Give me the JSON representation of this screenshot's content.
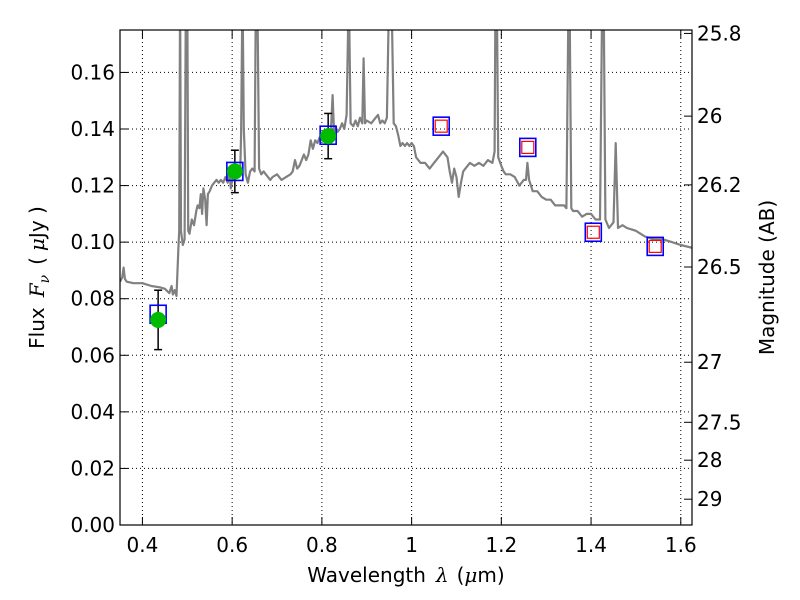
{
  "chart_data": {
    "type": "scatter",
    "xlabel": "Wavelength",
    "xlabel_symbol": "λ",
    "xlabel_unit_open": "(",
    "xlabel_unit_mu": "μ",
    "xlabel_unit_close": "m)",
    "ylabel": "Flux",
    "ylabel_symbol": "F",
    "ylabel_subscript": "ν",
    "ylabel_unit_open": "(",
    "ylabel_unit_mu": "μ",
    "ylabel_unit_close": "Jy )",
    "y2label": "Magnitude (AB)",
    "xlim": [
      0.35,
      1.625
    ],
    "ylim": [
      0.0,
      0.175
    ],
    "grid": true,
    "x_ticks": [
      {
        "value": 0.4,
        "label": "0.4"
      },
      {
        "value": 0.6,
        "label": "0.6"
      },
      {
        "value": 0.8,
        "label": "0.8"
      },
      {
        "value": 1.0,
        "label": "1"
      },
      {
        "value": 1.2,
        "label": "1.2"
      },
      {
        "value": 1.4,
        "label": "1.4"
      },
      {
        "value": 1.6,
        "label": "1.6"
      }
    ],
    "y_ticks": [
      {
        "value": 0.0,
        "label": "0.00"
      },
      {
        "value": 0.02,
        "label": "0.02"
      },
      {
        "value": 0.04,
        "label": "0.04"
      },
      {
        "value": 0.06,
        "label": "0.06"
      },
      {
        "value": 0.08,
        "label": "0.08"
      },
      {
        "value": 0.1,
        "label": "0.10"
      },
      {
        "value": 0.12,
        "label": "0.12"
      },
      {
        "value": 0.14,
        "label": "0.14"
      },
      {
        "value": 0.16,
        "label": "0.16"
      }
    ],
    "y2_ticks": [
      {
        "value": 25.8,
        "label": "25.8"
      },
      {
        "value": 26.0,
        "label": "26"
      },
      {
        "value": 26.2,
        "label": "26.2"
      },
      {
        "value": 26.5,
        "label": "26.5"
      },
      {
        "value": 27.0,
        "label": "27"
      },
      {
        "value": 27.5,
        "label": "27.5"
      },
      {
        "value": 28.0,
        "label": "28"
      },
      {
        "value": 29.0,
        "label": "29"
      }
    ],
    "colors": {
      "model": "#808080",
      "observed_marker": "#00bb00",
      "model_box": "#0000ff",
      "predicted_marker": "#ff0000",
      "errorbar": "#000000"
    },
    "series": [
      {
        "kind": "line",
        "points": [
          [
            0.35,
            0.086
          ],
          [
            0.355,
            0.0875
          ],
          [
            0.358,
            0.091
          ],
          [
            0.361,
            0.087
          ],
          [
            0.365,
            0.086
          ],
          [
            0.38,
            0.0855
          ],
          [
            0.4,
            0.0855
          ],
          [
            0.42,
            0.0845
          ],
          [
            0.44,
            0.084
          ],
          [
            0.45,
            0.0835
          ],
          [
            0.46,
            0.082
          ],
          [
            0.465,
            0.0845
          ],
          [
            0.468,
            0.0815
          ],
          [
            0.472,
            0.083
          ],
          [
            0.476,
            0.081
          ],
          [
            0.478,
            0.089
          ],
          [
            0.48,
            0.097
          ],
          [
            0.482,
            0.104
          ],
          [
            0.484,
            0.19
          ],
          [
            0.486,
            0.104
          ],
          [
            0.49,
            0.099
          ],
          [
            0.494,
            0.101
          ],
          [
            0.497,
            0.19
          ],
          [
            0.5,
            0.19
          ],
          [
            0.502,
            0.104
          ],
          [
            0.505,
            0.103
          ],
          [
            0.51,
            0.108
          ],
          [
            0.515,
            0.106
          ],
          [
            0.52,
            0.111
          ],
          [
            0.523,
            0.113
          ],
          [
            0.527,
            0.112
          ],
          [
            0.53,
            0.117
          ],
          [
            0.533,
            0.11
          ],
          [
            0.536,
            0.119
          ],
          [
            0.54,
            0.115
          ],
          [
            0.543,
            0.106
          ],
          [
            0.546,
            0.117
          ],
          [
            0.55,
            0.118
          ],
          [
            0.555,
            0.12
          ],
          [
            0.56,
            0.121
          ],
          [
            0.565,
            0.122
          ],
          [
            0.57,
            0.121
          ],
          [
            0.575,
            0.122
          ],
          [
            0.58,
            0.121
          ],
          [
            0.585,
            0.123
          ],
          [
            0.59,
            0.121
          ],
          [
            0.594,
            0.125
          ],
          [
            0.597,
            0.119
          ],
          [
            0.6,
            0.122
          ],
          [
            0.605,
            0.123
          ],
          [
            0.61,
            0.124
          ],
          [
            0.615,
            0.125
          ],
          [
            0.618,
            0.125
          ],
          [
            0.62,
            0.138
          ],
          [
            0.623,
            0.19
          ],
          [
            0.626,
            0.14
          ],
          [
            0.63,
            0.124
          ],
          [
            0.635,
            0.121
          ],
          [
            0.64,
            0.125
          ],
          [
            0.645,
            0.126
          ],
          [
            0.65,
            0.125
          ],
          [
            0.653,
            0.19
          ],
          [
            0.656,
            0.19
          ],
          [
            0.66,
            0.126
          ],
          [
            0.665,
            0.124
          ],
          [
            0.67,
            0.125
          ],
          [
            0.675,
            0.124
          ],
          [
            0.68,
            0.123
          ],
          [
            0.685,
            0.122
          ],
          [
            0.69,
            0.123
          ],
          [
            0.7,
            0.124
          ],
          [
            0.71,
            0.122
          ],
          [
            0.72,
            0.123
          ],
          [
            0.73,
            0.124
          ],
          [
            0.735,
            0.125
          ],
          [
            0.74,
            0.129
          ],
          [
            0.745,
            0.126
          ],
          [
            0.75,
            0.127
          ],
          [
            0.755,
            0.129
          ],
          [
            0.76,
            0.131
          ],
          [
            0.765,
            0.129
          ],
          [
            0.77,
            0.131
          ],
          [
            0.775,
            0.136
          ],
          [
            0.78,
            0.133
          ],
          [
            0.785,
            0.136
          ],
          [
            0.79,
            0.135
          ],
          [
            0.795,
            0.137
          ],
          [
            0.8,
            0.136
          ],
          [
            0.805,
            0.139
          ],
          [
            0.81,
            0.138
          ],
          [
            0.815,
            0.14
          ],
          [
            0.82,
            0.139
          ],
          [
            0.824,
            0.152
          ],
          [
            0.827,
            0.139
          ],
          [
            0.83,
            0.141
          ],
          [
            0.835,
            0.139
          ],
          [
            0.84,
            0.14
          ],
          [
            0.845,
            0.142
          ],
          [
            0.85,
            0.14
          ],
          [
            0.855,
            0.145
          ],
          [
            0.86,
            0.19
          ],
          [
            0.864,
            0.142
          ],
          [
            0.87,
            0.141
          ],
          [
            0.875,
            0.143
          ],
          [
            0.88,
            0.141
          ],
          [
            0.885,
            0.144
          ],
          [
            0.89,
            0.142
          ],
          [
            0.893,
            0.165
          ],
          [
            0.896,
            0.142
          ],
          [
            0.9,
            0.143
          ],
          [
            0.91,
            0.142
          ],
          [
            0.92,
            0.144
          ],
          [
            0.925,
            0.145
          ],
          [
            0.93,
            0.142
          ],
          [
            0.935,
            0.143
          ],
          [
            0.94,
            0.142
          ],
          [
            0.945,
            0.144
          ],
          [
            0.95,
            0.19
          ],
          [
            0.955,
            0.19
          ],
          [
            0.96,
            0.142
          ],
          [
            0.965,
            0.141
          ],
          [
            0.97,
            0.138
          ],
          [
            0.975,
            0.134
          ],
          [
            0.98,
            0.135
          ],
          [
            0.985,
            0.134
          ],
          [
            0.99,
            0.135
          ],
          [
            0.995,
            0.134
          ],
          [
            1.0,
            0.135
          ],
          [
            1.005,
            0.134
          ],
          [
            1.01,
            0.13
          ],
          [
            1.02,
            0.128
          ],
          [
            1.03,
            0.128
          ],
          [
            1.04,
            0.126
          ],
          [
            1.05,
            0.128
          ],
          [
            1.06,
            0.13
          ],
          [
            1.07,
            0.132
          ],
          [
            1.08,
            0.13
          ],
          [
            1.085,
            0.125
          ],
          [
            1.09,
            0.121
          ],
          [
            1.095,
            0.126
          ],
          [
            1.1,
            0.123
          ],
          [
            1.105,
            0.116
          ],
          [
            1.11,
            0.121
          ],
          [
            1.115,
            0.125
          ],
          [
            1.12,
            0.126
          ],
          [
            1.13,
            0.128
          ],
          [
            1.14,
            0.127
          ],
          [
            1.15,
            0.128
          ],
          [
            1.16,
            0.127
          ],
          [
            1.17,
            0.129
          ],
          [
            1.18,
            0.128
          ],
          [
            1.185,
            0.132
          ],
          [
            1.187,
            0.19
          ],
          [
            1.19,
            0.19
          ],
          [
            1.193,
            0.13
          ],
          [
            1.2,
            0.127
          ],
          [
            1.205,
            0.125
          ],
          [
            1.21,
            0.124
          ],
          [
            1.22,
            0.124
          ],
          [
            1.23,
            0.123
          ],
          [
            1.24,
            0.12
          ],
          [
            1.25,
            0.122
          ],
          [
            1.255,
            0.122
          ],
          [
            1.258,
            0.128
          ],
          [
            1.262,
            0.122
          ],
          [
            1.27,
            0.118
          ],
          [
            1.28,
            0.118
          ],
          [
            1.29,
            0.116
          ],
          [
            1.3,
            0.115
          ],
          [
            1.31,
            0.115
          ],
          [
            1.32,
            0.113
          ],
          [
            1.33,
            0.113
          ],
          [
            1.34,
            0.113
          ],
          [
            1.345,
            0.112
          ],
          [
            1.35,
            0.19
          ],
          [
            1.352,
            0.19
          ],
          [
            1.356,
            0.112
          ],
          [
            1.36,
            0.111
          ],
          [
            1.37,
            0.111
          ],
          [
            1.38,
            0.109
          ],
          [
            1.39,
            0.11
          ],
          [
            1.4,
            0.11
          ],
          [
            1.41,
            0.108
          ],
          [
            1.42,
            0.108
          ],
          [
            1.425,
            0.19
          ],
          [
            1.428,
            0.19
          ],
          [
            1.432,
            0.108
          ],
          [
            1.44,
            0.105
          ],
          [
            1.45,
            0.107
          ],
          [
            1.455,
            0.135
          ],
          [
            1.46,
            0.105
          ],
          [
            1.47,
            0.106
          ],
          [
            1.48,
            0.105
          ],
          [
            1.5,
            0.104
          ],
          [
            1.52,
            0.102
          ],
          [
            1.54,
            0.101
          ],
          [
            1.56,
            0.101
          ],
          [
            1.58,
            0.1
          ],
          [
            1.6,
            0.099
          ],
          [
            1.625,
            0.098
          ]
        ]
      },
      {
        "kind": "observed",
        "points": [
          {
            "x": 0.435,
            "y": 0.0725,
            "err": 0.0105
          },
          {
            "x": 0.606,
            "y": 0.125,
            "err": 0.0075
          },
          {
            "x": 0.814,
            "y": 0.1375,
            "err": 0.008
          }
        ]
      },
      {
        "kind": "model_box",
        "points": [
          {
            "x": 0.435,
            "y": 0.0745
          },
          {
            "x": 0.606,
            "y": 0.125
          },
          {
            "x": 0.814,
            "y": 0.1378
          },
          {
            "x": 1.066,
            "y": 0.141
          },
          {
            "x": 1.259,
            "y": 0.1335
          },
          {
            "x": 1.405,
            "y": 0.1035
          },
          {
            "x": 1.543,
            "y": 0.0985
          }
        ]
      },
      {
        "kind": "predicted",
        "points": [
          {
            "x": 1.066,
            "y": 0.141
          },
          {
            "x": 1.259,
            "y": 0.1335
          },
          {
            "x": 1.405,
            "y": 0.1035
          },
          {
            "x": 1.543,
            "y": 0.0985
          }
        ]
      }
    ]
  }
}
